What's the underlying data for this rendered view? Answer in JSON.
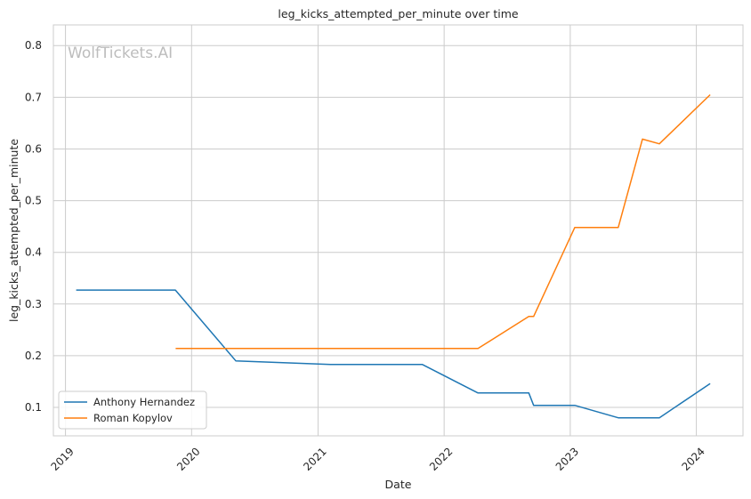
{
  "chart_data": {
    "type": "line",
    "title": "leg_kicks_attempted_per_minute over time",
    "xlabel": "Date",
    "ylabel": "leg_kicks_attempted_per_minute",
    "watermark": "WolfTickets.AI",
    "xlim": [
      "2018-11-27",
      "2024-05-15"
    ],
    "ylim": [
      0.045,
      0.84
    ],
    "x_ticks": [
      "2019-01-01",
      "2020-01-01",
      "2021-01-01",
      "2022-01-01",
      "2023-01-01",
      "2024-01-01"
    ],
    "x_tick_labels": [
      "2019",
      "2020",
      "2021",
      "2022",
      "2023",
      "2024"
    ],
    "y_ticks": [
      0.1,
      0.2,
      0.3,
      0.4,
      0.5,
      0.6,
      0.7,
      0.8
    ],
    "y_tick_labels": [
      "0.1",
      "0.2",
      "0.3",
      "0.4",
      "0.5",
      "0.6",
      "0.7",
      "0.8"
    ],
    "grid": true,
    "legend_position": "lower-left",
    "series": [
      {
        "name": "Anthony Hernandez",
        "color": "#1f77b4",
        "points": [
          {
            "x": "2019-02-01",
            "y": 0.327
          },
          {
            "x": "2019-11-15",
            "y": 0.327
          },
          {
            "x": "2020-05-08",
            "y": 0.19
          },
          {
            "x": "2021-02-06",
            "y": 0.183
          },
          {
            "x": "2021-10-30",
            "y": 0.183
          },
          {
            "x": "2022-04-09",
            "y": 0.128
          },
          {
            "x": "2022-09-03",
            "y": 0.128
          },
          {
            "x": "2022-09-17",
            "y": 0.104
          },
          {
            "x": "2023-01-14",
            "y": 0.104
          },
          {
            "x": "2023-05-20",
            "y": 0.08
          },
          {
            "x": "2023-09-16",
            "y": 0.08
          },
          {
            "x": "2024-02-10",
            "y": 0.146
          }
        ]
      },
      {
        "name": "Roman Kopylov",
        "color": "#ff7f0e",
        "points": [
          {
            "x": "2019-11-16",
            "y": 0.214
          },
          {
            "x": "2022-04-09",
            "y": 0.214
          },
          {
            "x": "2022-09-03",
            "y": 0.276
          },
          {
            "x": "2022-09-17",
            "y": 0.276
          },
          {
            "x": "2023-01-14",
            "y": 0.448
          },
          {
            "x": "2023-05-20",
            "y": 0.448
          },
          {
            "x": "2023-07-29",
            "y": 0.619
          },
          {
            "x": "2023-09-16",
            "y": 0.61
          },
          {
            "x": "2024-02-10",
            "y": 0.705
          }
        ]
      }
    ]
  }
}
